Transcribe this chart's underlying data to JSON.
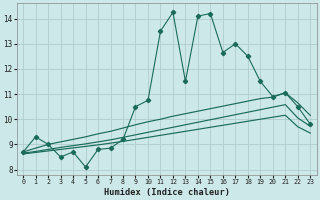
{
  "xlabel": "Humidex (Indice chaleur)",
  "xlim": [
    -0.5,
    23.5
  ],
  "ylim": [
    7.8,
    14.6
  ],
  "yticks": [
    8,
    9,
    10,
    11,
    12,
    13,
    14
  ],
  "xticks": [
    0,
    1,
    2,
    3,
    4,
    5,
    6,
    7,
    8,
    9,
    10,
    11,
    12,
    13,
    14,
    15,
    16,
    17,
    18,
    19,
    20,
    21,
    22,
    23
  ],
  "bg_color": "#cde8e8",
  "grid_color": "#b0cccc",
  "line_color": "#1a6b5a",
  "jagged_x": [
    0,
    1,
    2,
    3,
    4,
    5,
    6,
    7,
    8,
    9,
    10,
    11,
    12,
    13,
    14,
    15,
    16,
    17,
    18,
    19,
    20,
    21,
    22,
    23
  ],
  "jagged_y": [
    8.7,
    9.3,
    9.0,
    8.5,
    8.7,
    8.1,
    8.8,
    8.85,
    9.2,
    10.5,
    10.75,
    13.5,
    14.25,
    11.5,
    14.1,
    14.2,
    12.65,
    13.0,
    12.5,
    11.5,
    10.9,
    11.05,
    10.5,
    9.8
  ],
  "smooth1_x": [
    0,
    1,
    2,
    3,
    4,
    5,
    6,
    7,
    8,
    9,
    10,
    11,
    12,
    13,
    14,
    15,
    16,
    17,
    18,
    19,
    20,
    21,
    22,
    23
  ],
  "smooth1_y": [
    8.7,
    8.85,
    9.0,
    9.1,
    9.2,
    9.3,
    9.42,
    9.52,
    9.65,
    9.78,
    9.9,
    10.0,
    10.12,
    10.22,
    10.32,
    10.42,
    10.52,
    10.62,
    10.72,
    10.82,
    10.88,
    11.05,
    10.65,
    10.15
  ],
  "smooth2_x": [
    0,
    1,
    2,
    3,
    4,
    5,
    6,
    7,
    8,
    9,
    10,
    11,
    12,
    13,
    14,
    15,
    16,
    17,
    18,
    19,
    20,
    21,
    22,
    23
  ],
  "smooth2_y": [
    8.65,
    8.72,
    8.8,
    8.88,
    8.95,
    9.02,
    9.1,
    9.18,
    9.28,
    9.38,
    9.48,
    9.58,
    9.68,
    9.78,
    9.88,
    9.98,
    10.08,
    10.18,
    10.28,
    10.38,
    10.48,
    10.58,
    10.05,
    9.72
  ],
  "smooth3_x": [
    0,
    1,
    2,
    3,
    4,
    5,
    6,
    7,
    8,
    9,
    10,
    11,
    12,
    13,
    14,
    15,
    16,
    17,
    18,
    19,
    20,
    21,
    22,
    23
  ],
  "smooth3_y": [
    8.62,
    8.68,
    8.74,
    8.8,
    8.86,
    8.92,
    8.98,
    9.05,
    9.12,
    9.2,
    9.28,
    9.36,
    9.44,
    9.52,
    9.6,
    9.68,
    9.76,
    9.84,
    9.92,
    10.0,
    10.08,
    10.16,
    9.7,
    9.45
  ]
}
